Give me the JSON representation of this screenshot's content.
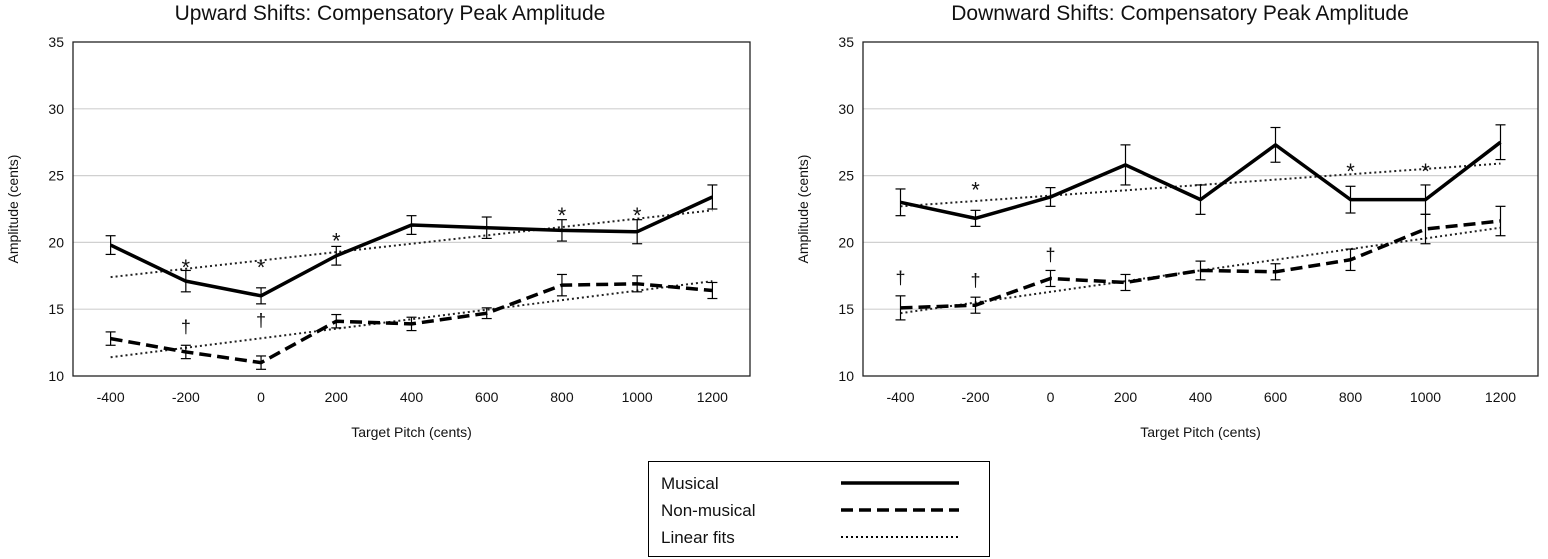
{
  "chart_data": [
    {
      "type": "line",
      "title": "Upward Shifts: Compensatory Peak Amplitude",
      "xlabel": "Target Pitch (cents)",
      "ylabel": "Amplitude (cents)",
      "categories": [
        "-400",
        "-200",
        "0",
        "200",
        "400",
        "600",
        "800",
        "1000",
        "1200"
      ],
      "x": [
        -400,
        -200,
        0,
        200,
        400,
        600,
        800,
        1000,
        1200
      ],
      "ylim": [
        10,
        35
      ],
      "yticks": [
        "10",
        "15",
        "20",
        "25",
        "30",
        "35"
      ],
      "grid": "horizontal",
      "series": [
        {
          "name": "Musical",
          "style": "solid",
          "values": [
            19.8,
            17.1,
            16.0,
            19.0,
            21.3,
            21.1,
            20.9,
            20.8,
            23.4
          ],
          "errors": [
            0.7,
            0.8,
            0.6,
            0.7,
            0.7,
            0.8,
            0.8,
            0.9,
            0.9
          ]
        },
        {
          "name": "Non-musical",
          "style": "dashed",
          "values": [
            12.8,
            11.8,
            11.0,
            14.1,
            13.9,
            14.7,
            16.8,
            16.9,
            16.4
          ],
          "errors": [
            0.5,
            0.5,
            0.5,
            0.5,
            0.5,
            0.4,
            0.8,
            0.6,
            0.6
          ]
        },
        {
          "name": "Linear fits",
          "style": "dotted",
          "lines": [
            [
              17.4,
              22.4
            ],
            [
              11.4,
              17.1
            ]
          ]
        }
      ],
      "annotations": [
        {
          "x": -200,
          "y": 18.6,
          "text": "*"
        },
        {
          "x": 0,
          "y": 18.6,
          "text": "*"
        },
        {
          "x": 200,
          "y": 20.6,
          "text": "*"
        },
        {
          "x": 800,
          "y": 22.5,
          "text": "*"
        },
        {
          "x": 1000,
          "y": 22.5,
          "text": "*"
        },
        {
          "x": -200,
          "y": 13.8,
          "text": "†"
        },
        {
          "x": 0,
          "y": 14.3,
          "text": "†"
        }
      ]
    },
    {
      "type": "line",
      "title": "Downward Shifts: Compensatory Peak Amplitude",
      "xlabel": "Target Pitch (cents)",
      "ylabel": "Amplitude (cents)",
      "categories": [
        "-400",
        "-200",
        "0",
        "200",
        "400",
        "600",
        "800",
        "1000",
        "1200"
      ],
      "x": [
        -400,
        -200,
        0,
        200,
        400,
        600,
        800,
        1000,
        1200
      ],
      "ylim": [
        10,
        35
      ],
      "yticks": [
        "10",
        "15",
        "20",
        "25",
        "30",
        "35"
      ],
      "grid": "horizontal",
      "series": [
        {
          "name": "Musical",
          "style": "solid",
          "values": [
            23.0,
            21.8,
            23.4,
            25.8,
            23.2,
            27.3,
            23.2,
            23.2,
            27.5
          ],
          "errors": [
            1.0,
            0.6,
            0.7,
            1.5,
            1.1,
            1.3,
            1.0,
            1.1,
            1.3
          ]
        },
        {
          "name": "Non-musical",
          "style": "dashed",
          "values": [
            15.1,
            15.3,
            17.3,
            17.0,
            17.9,
            17.8,
            18.7,
            21.0,
            21.6
          ],
          "errors": [
            0.9,
            0.6,
            0.6,
            0.6,
            0.7,
            0.6,
            0.8,
            1.1,
            1.1
          ]
        },
        {
          "name": "Linear fits",
          "style": "dotted",
          "lines": [
            [
              22.7,
              25.9
            ],
            [
              14.7,
              21.1
            ]
          ]
        }
      ],
      "annotations": [
        {
          "x": -200,
          "y": 24.4,
          "text": "*"
        },
        {
          "x": 800,
          "y": 25.8,
          "text": "*"
        },
        {
          "x": 1000,
          "y": 25.8,
          "text": "*"
        },
        {
          "x": -400,
          "y": 17.5,
          "text": "†"
        },
        {
          "x": -200,
          "y": 17.3,
          "text": "†"
        },
        {
          "x": 0,
          "y": 19.2,
          "text": "†"
        }
      ]
    }
  ],
  "legend": {
    "items": [
      {
        "label": "Musical",
        "style": "solid"
      },
      {
        "label": "Non-musical",
        "style": "dashed"
      },
      {
        "label": "Linear fits",
        "style": "dotted"
      }
    ]
  }
}
